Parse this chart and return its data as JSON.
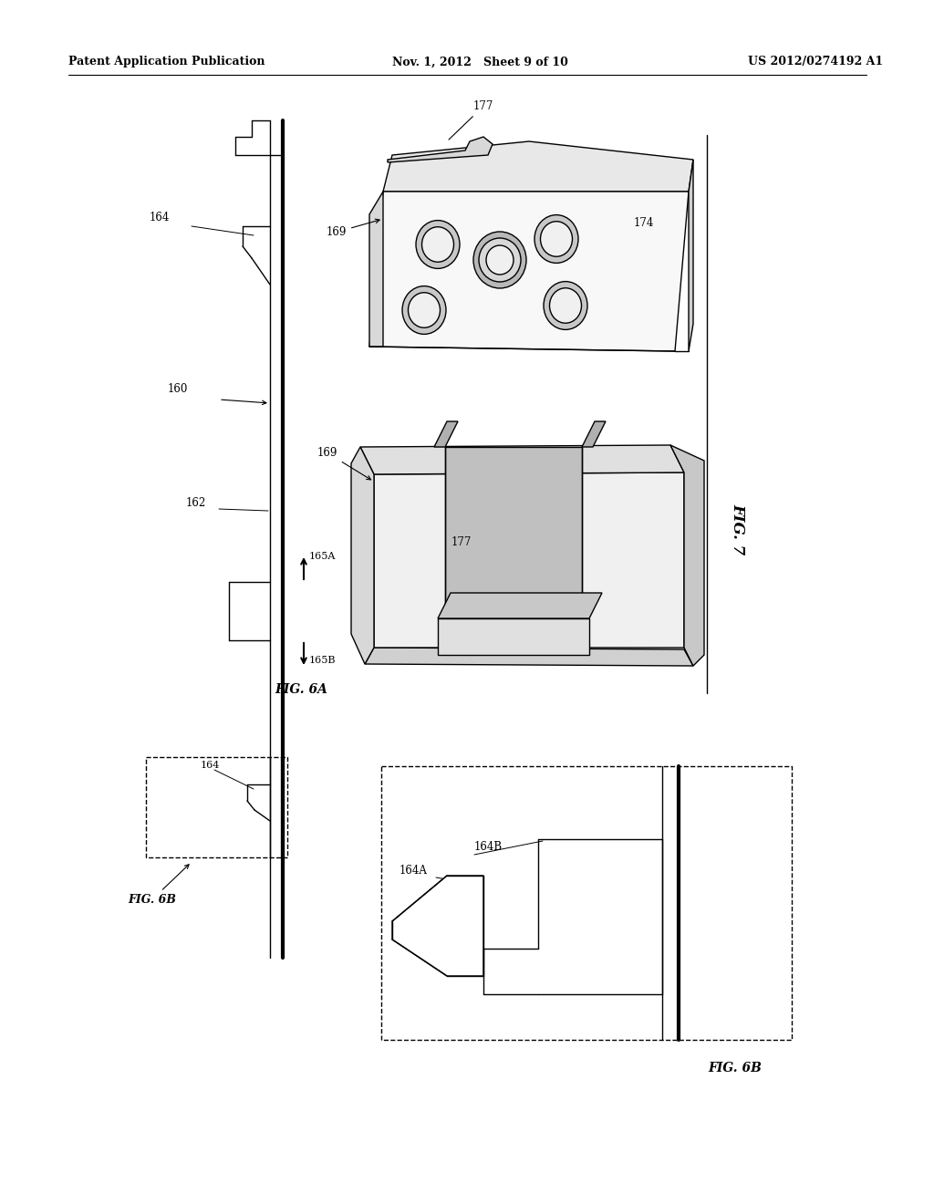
{
  "bg_color": "#ffffff",
  "line_color": "#000000",
  "header_left": "Patent Application Publication",
  "header_mid": "Nov. 1, 2012   Sheet 9 of 10",
  "header_right": "US 2012/0274192 A1",
  "fig6a_label": "FIG. 6A",
  "fig6b_label": "FIG. 6B",
  "fig7_label": "FIG. 7"
}
